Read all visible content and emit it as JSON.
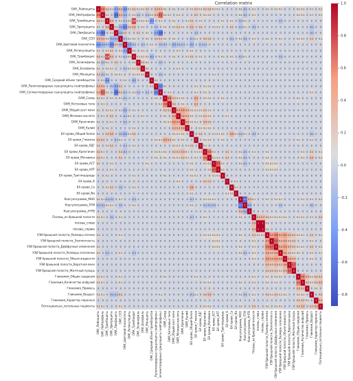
{
  "chart_data": {
    "type": "heatmap",
    "title": "Correlation matrix",
    "colormap": "coolwarm",
    "clim": [
      -0.87,
      1
    ],
    "cticks": [
      {
        "value": 1,
        "label": "1.0"
      },
      0.8,
      0.6,
      0.4,
      0.2,
      {
        "value": 0,
        "label": "0.0"
      },
      -0.2,
      -0.4,
      -0.6,
      -0.8
    ],
    "labels": [
      "ОАК_Лейкоциты",
      "ОАК_Нейтрофилы",
      "ОАК_Тромбоциты",
      "ОАК_Эритроциты",
      "ОАК_Лимфоциты",
      "ОАК_СОЭ",
      "ОАК_Цветовой показатель",
      "ОАК_Ретикулоциты",
      "ОАК_Тромбокрит",
      "ОАК_Эозинофилы",
      "ОАК_Базофилы",
      "ОАК_Моноциты",
      "ОАК_Средний объем тромбоцитов",
      "ОАК_Палочкоядерные гранулоциты (нейтрофилы)",
      "ОАК_Сегментоядерные гранулоциты (нейтрофилы)",
      "ОАМ_Сахар",
      "ОАМ_Кетоновые тела",
      "ОАМ_Общий азот мочи",
      "ОАМ_Мочевая кислота",
      "ОАМ_Креатинин",
      "ОАМ_Калий",
      "БХ крови_Общий белок",
      "БХ крови_Глюкоза",
      "БХ крови_ЛДГ",
      "БХ крови_Креатинин",
      "БХ крови_Мочевина",
      "БХ крови_АСТ",
      "БХ крови_АЛТ",
      "БХ крови_Триглицериды",
      "БХ крови_K",
      "БХ крови_Ca",
      "БХ крови_Na",
      "Коагулограмма_МНО",
      "Коагулограмма_ПТИ",
      "Коагулограмма_АЧТВ",
      "Посевы_из брюшной полости",
      "посевы_слева",
      "посевы_справа",
      "УЗИ брюшной полости_Размеры печени",
      "УЗИ брюшной полости_Эхоплотность",
      "УЗИ брюшной полости_Диффузные изменения",
      "УЗИ брюшной полости_Размеры селезенки",
      "УЗИ брюшной полости_Объем жидкости",
      "УЗИ брюшной полости_Воротная вена",
      "УЗИ брюшной полости_Желчный пузырь",
      "Гликемия_Общие сведения",
      "Гликемия_Количество инфузий",
      "Гликемия_Примесь",
      "Гликемия_Возраст",
      "Гликемия_Характер переноса",
      "Потенциально_летальные пациенты"
    ],
    "values": [
      [
        1
      ],
      [
        0.6,
        1
      ],
      [
        0.2,
        0.1,
        1
      ],
      [
        0.1,
        0,
        0.3,
        1
      ],
      [
        -0.3,
        -0.6,
        0,
        0.1,
        1
      ],
      [
        0.3,
        0.3,
        0.1,
        -0.2,
        -0.2,
        1
      ],
      [
        -0.4,
        -0.2,
        -0.1,
        -0.5,
        0.2,
        -0.1,
        1
      ],
      [
        0.1,
        0,
        0.1,
        0.2,
        0,
        0.1,
        -0.3,
        1
      ],
      [
        0.2,
        0.1,
        0.8,
        0.3,
        0,
        0.1,
        -0.1,
        0.1,
        1
      ],
      [
        0.1,
        -0.1,
        0.1,
        0,
        0.2,
        0,
        0,
        0,
        0.1,
        1
      ],
      [
        0.1,
        0,
        0.1,
        0.1,
        0,
        0,
        -0.1,
        0.1,
        0.1,
        0.2,
        1
      ],
      [
        0.2,
        -0.1,
        0.1,
        0,
        0.1,
        0.1,
        0,
        0,
        0.1,
        0.1,
        0.1,
        1
      ],
      [
        0,
        0.1,
        -0.4,
        0,
        0,
        0,
        0.1,
        0,
        -0.2,
        0,
        0,
        0,
        1
      ],
      [
        0.3,
        0.3,
        0,
        -0.1,
        -0.3,
        0.2,
        0,
        0,
        0,
        0,
        0,
        0,
        0.1,
        1
      ],
      [
        0.3,
        0.7,
        0.1,
        0,
        -0.6,
        0.2,
        -0.1,
        0,
        0.1,
        -0.1,
        0,
        -0.1,
        0,
        -0.5,
        1
      ],
      [
        0.1,
        0.1,
        0,
        0.1,
        0,
        0.1,
        -0.1,
        0,
        0,
        0,
        0,
        0,
        0,
        0.1,
        0,
        1
      ],
      [
        0,
        0.1,
        0,
        0,
        0,
        0,
        0,
        0,
        0,
        0,
        0,
        0,
        0,
        0,
        0.1,
        0.6,
        1
      ],
      [
        0.1,
        0,
        0.1,
        0.1,
        0,
        0.1,
        -0.2,
        0,
        0.1,
        0,
        0,
        0,
        0,
        0,
        0,
        0.2,
        0.2,
        1
      ],
      [
        0,
        0.1,
        0,
        0.2,
        0,
        0,
        -0.1,
        0.1,
        0,
        0,
        0.1,
        0,
        0,
        0,
        0,
        0.1,
        0,
        0.4,
        1
      ],
      [
        0.1,
        0,
        0,
        0.1,
        0,
        0,
        -0.1,
        0,
        0,
        0,
        0,
        0,
        0,
        0,
        0,
        0.1,
        0.1,
        0.5,
        0.4,
        1
      ],
      [
        0,
        0,
        0.1,
        0,
        0,
        0,
        0,
        0,
        0.1,
        0,
        0,
        0,
        0,
        0,
        0,
        0,
        0,
        0.3,
        0.3,
        0.4,
        1
      ],
      [
        0.1,
        0,
        0.2,
        0.3,
        0,
        -0.1,
        -0.2,
        0.1,
        0.2,
        0,
        0,
        0,
        0,
        0,
        0,
        0,
        0,
        0.1,
        0.1,
        0.1,
        0,
        1
      ],
      [
        0.2,
        0.2,
        0,
        0,
        -0.1,
        0.1,
        0,
        0,
        0,
        0,
        0,
        0,
        0,
        0.1,
        0.1,
        0.4,
        0.3,
        0.1,
        0,
        0.1,
        0,
        0,
        1
      ],
      [
        0.1,
        0,
        0.1,
        0.2,
        0,
        0,
        -0.1,
        0,
        0.1,
        0,
        0,
        0,
        0,
        0,
        0,
        0,
        0,
        0.1,
        0.1,
        0,
        0.1,
        0.2,
        0,
        1
      ],
      [
        0.2,
        0.1,
        0,
        0,
        0,
        0.2,
        -0.1,
        0,
        0,
        0,
        0,
        0,
        0,
        0.1,
        0.1,
        0.1,
        0,
        0.2,
        0.2,
        0.3,
        0.1,
        0,
        0.1,
        0.1,
        1
      ],
      [
        0.2,
        0.1,
        0,
        0,
        0,
        0.2,
        0,
        0,
        0,
        0,
        0,
        0,
        0,
        0.1,
        0,
        0.1,
        0,
        0.1,
        0.1,
        0.2,
        0.1,
        0,
        0.1,
        0,
        0.6,
        1
      ],
      [
        0.1,
        0,
        0,
        0.1,
        0,
        0,
        0,
        0,
        0,
        0,
        0,
        0.1,
        0,
        0,
        0,
        0,
        0,
        0,
        0,
        0,
        0,
        0.1,
        0,
        0,
        0.1,
        0.1,
        1
      ],
      [
        0.1,
        0,
        0,
        0.1,
        0,
        0,
        0,
        0,
        0,
        0,
        0,
        0,
        0,
        0,
        0,
        0,
        0,
        0,
        0,
        0,
        0,
        0.1,
        0,
        0,
        0,
        0.1,
        0.7,
        1
      ],
      [
        0,
        0,
        0.1,
        0,
        0,
        0,
        0,
        0,
        0.1,
        0,
        0,
        0,
        0,
        0,
        0,
        0.1,
        0,
        0,
        0,
        0,
        0,
        0.1,
        0.1,
        0,
        0,
        0,
        0.1,
        0.1,
        1
      ],
      [
        0,
        0,
        0,
        0,
        0,
        0,
        0,
        0,
        0,
        0,
        0,
        0,
        0,
        0,
        0,
        0,
        0,
        0,
        0.1,
        0,
        0,
        0,
        0,
        0,
        0.2,
        0.2,
        0,
        0,
        0,
        1
      ],
      [
        0,
        0,
        0.1,
        0.2,
        0,
        -0.1,
        0,
        0,
        0.1,
        0,
        0,
        0,
        0,
        0,
        0,
        0,
        0,
        0,
        0,
        0,
        0,
        0.4,
        0,
        0,
        0,
        0,
        0,
        0,
        0,
        0,
        1
      ],
      [
        0,
        0,
        0,
        0,
        0,
        0,
        0,
        0,
        0,
        0,
        0,
        0,
        0,
        0,
        0,
        0,
        0,
        0,
        0,
        0,
        0,
        0.1,
        0,
        0,
        0,
        0,
        0,
        0,
        0,
        0.1,
        0.1,
        1
      ],
      [
        0.1,
        0.1,
        -0.1,
        -0.1,
        0,
        0.1,
        0,
        0,
        -0.1,
        0,
        0,
        0,
        0,
        0,
        0,
        0,
        0,
        0,
        0,
        0,
        0,
        -0.1,
        0,
        0,
        0.1,
        0.1,
        0.1,
        0,
        0,
        0,
        0,
        0,
        1
      ],
      [
        -0.1,
        -0.1,
        0.1,
        0.1,
        0,
        -0.1,
        0,
        0,
        0.1,
        0,
        0,
        0,
        0,
        0,
        0,
        0,
        0,
        0,
        0,
        0,
        0,
        0.1,
        0,
        0,
        -0.1,
        -0.1,
        -0.1,
        0,
        0,
        0,
        0,
        0,
        -0.7,
        1
      ],
      [
        0,
        0,
        0,
        0,
        0,
        0,
        0,
        0,
        0,
        0,
        0,
        0,
        0,
        0,
        0,
        0,
        0,
        0,
        0,
        0,
        0,
        0,
        0,
        0,
        0,
        0,
        0,
        0,
        0,
        0,
        0,
        0,
        0.3,
        -0.2,
        1
      ],
      [
        0.1,
        0.1,
        0,
        -0.1,
        0,
        0.1,
        0,
        0,
        0,
        0,
        0,
        0,
        0,
        0,
        0,
        0,
        0,
        0,
        0,
        0,
        0,
        -0.1,
        0,
        0,
        0.1,
        0,
        0,
        0,
        0,
        0,
        0,
        0,
        0.1,
        0,
        0,
        1
      ],
      [
        0,
        0,
        0,
        0,
        0,
        0,
        0,
        0,
        0,
        0,
        0,
        0,
        0,
        0,
        0,
        0,
        0,
        0,
        0,
        0,
        0,
        0,
        0,
        0,
        0,
        0,
        0,
        0,
        0,
        0,
        0,
        0,
        0,
        0,
        0,
        0.3,
        1
      ],
      [
        0,
        0,
        0,
        0,
        0,
        0,
        0,
        0,
        0,
        0,
        0,
        0,
        0,
        0,
        0,
        0,
        0,
        0,
        0,
        0,
        0,
        0,
        0,
        0,
        0,
        0,
        0,
        0,
        0,
        0,
        0,
        0,
        0,
        0,
        0,
        0.3,
        1,
        1
      ],
      [
        0.1,
        0,
        0,
        0,
        0,
        0.1,
        0,
        0,
        0,
        0,
        0,
        0,
        0,
        0,
        0,
        0,
        0,
        0,
        0,
        0,
        0,
        0,
        0,
        0,
        0.1,
        0.1,
        0.1,
        0.1,
        0,
        0,
        0,
        0,
        0.1,
        0,
        0,
        0.2,
        0.1,
        0.1,
        1
      ],
      [
        0,
        0,
        0,
        0,
        0,
        0,
        0,
        0,
        0,
        0,
        0,
        0,
        0,
        0,
        0,
        0,
        0,
        0,
        0,
        0,
        0,
        0,
        0,
        0,
        0,
        0,
        0.1,
        0.1,
        0,
        0,
        0,
        0,
        0,
        0,
        0,
        0.1,
        0,
        0,
        0.5,
        1
      ],
      [
        0.1,
        0,
        0,
        0,
        0,
        0,
        0,
        0,
        0,
        0,
        0,
        0,
        0,
        0,
        0,
        0,
        0,
        0,
        0,
        0,
        0,
        0,
        0,
        0,
        0,
        0,
        0.1,
        0.1,
        0,
        0,
        0,
        0,
        0.1,
        0,
        0,
        0.1,
        0,
        0,
        0.6,
        0.7,
        1
      ],
      [
        0.1,
        0,
        -0.1,
        0,
        0,
        0.1,
        0,
        0,
        -0.1,
        0,
        0,
        0,
        0,
        0,
        0,
        0,
        0,
        0,
        0,
        0,
        0,
        0,
        0,
        0,
        0,
        0,
        0,
        0,
        0,
        0,
        0,
        0,
        0.1,
        -0.1,
        0,
        0.1,
        0,
        0,
        0.4,
        0.3,
        0.4,
        1
      ],
      [
        0,
        0,
        0,
        0,
        0,
        0,
        0,
        0,
        0,
        0,
        0,
        0,
        0,
        0,
        0,
        0,
        0,
        0,
        0,
        0,
        0,
        0,
        0,
        0,
        0,
        0,
        0,
        0,
        0,
        0,
        0,
        0,
        0,
        0,
        0,
        0.1,
        0,
        0,
        0.5,
        0.4,
        0.5,
        0.4,
        1
      ],
      [
        0,
        0,
        0,
        0,
        0,
        0,
        0,
        0,
        0,
        0,
        0,
        0,
        0,
        0,
        0,
        0,
        0,
        0,
        0,
        0,
        0,
        0,
        0,
        0,
        0,
        0,
        0,
        0,
        0,
        0,
        0,
        0,
        0,
        0,
        0,
        0,
        0,
        0,
        0.3,
        0.2,
        0.3,
        0.2,
        0.4,
        1
      ],
      [
        0,
        0,
        0,
        0,
        0,
        0,
        0,
        0,
        0,
        0,
        0,
        0,
        0,
        0,
        0,
        0,
        0,
        0,
        0,
        0,
        0,
        0,
        0,
        0,
        0,
        0,
        0,
        0,
        0,
        0,
        0,
        0,
        0,
        0,
        0,
        0,
        0,
        0,
        0.2,
        0.2,
        0.2,
        0.1,
        0.3,
        0.7,
        1
      ],
      [
        0.1,
        0.1,
        0,
        0,
        0,
        0.1,
        0,
        0,
        0,
        0,
        0,
        0,
        0,
        0,
        0,
        0.1,
        0,
        0,
        0,
        0,
        0,
        0,
        0.1,
        0,
        0,
        0,
        0,
        0,
        0,
        0,
        0,
        0,
        0,
        0,
        0,
        0.1,
        0,
        0,
        0.1,
        0,
        0.1,
        0.1,
        0,
        0,
        0,
        1
      ],
      [
        0.1,
        0.1,
        0,
        0,
        0,
        0.1,
        0,
        0,
        0,
        0,
        0,
        0,
        0,
        0,
        0,
        0,
        0,
        0,
        0,
        0,
        0,
        0,
        0,
        0,
        0.1,
        0.1,
        0,
        0,
        0,
        0,
        0,
        0,
        0.1,
        0,
        0,
        0.1,
        0,
        0,
        0.1,
        0,
        0.1,
        0,
        0,
        0,
        0,
        0.6,
        1
      ],
      [
        0,
        0,
        0,
        0,
        0,
        0,
        0,
        0,
        0,
        0,
        0,
        0,
        0,
        0,
        0,
        0,
        0,
        0,
        0,
        0,
        0,
        0,
        0,
        0,
        0,
        0,
        0,
        0,
        0,
        0,
        0,
        0,
        0,
        0,
        0,
        0,
        0,
        0,
        0,
        0,
        0,
        0,
        0,
        0,
        0,
        0.3,
        0.2,
        1
      ],
      [
        0.1,
        0.1,
        0,
        -0.1,
        -0.1,
        0.2,
        0,
        0,
        0,
        0,
        0,
        0,
        0,
        0,
        0.1,
        0,
        0,
        0,
        0,
        0,
        0,
        -0.1,
        0.1,
        0,
        0.2,
        0.3,
        0,
        0,
        0,
        0,
        0,
        0,
        0.1,
        -0.1,
        0,
        0.1,
        0,
        0,
        0.2,
        0.1,
        0.2,
        0.1,
        0.1,
        0,
        0,
        0.1,
        0.1,
        0,
        1
      ],
      [
        0,
        0,
        0,
        0,
        0,
        0,
        0,
        0,
        0,
        0,
        0,
        0,
        0,
        0,
        0,
        0,
        0,
        0,
        0,
        0,
        0,
        0,
        0,
        0,
        0,
        0,
        0,
        0,
        0,
        0,
        0,
        0,
        0,
        0,
        0,
        0,
        0,
        0,
        0,
        0,
        0,
        0,
        0,
        0,
        0,
        0.2,
        0.2,
        0.1,
        0,
        1
      ],
      [
        0.1,
        0.1,
        0,
        0,
        0,
        0.1,
        0,
        0,
        0,
        0,
        0,
        0,
        0,
        0,
        0,
        0,
        0,
        0,
        0,
        0,
        0,
        0,
        0,
        0,
        0.1,
        0.1,
        0,
        0,
        0,
        0,
        0,
        0,
        0.1,
        0,
        0,
        0.2,
        0,
        0,
        0.1,
        0,
        0.1,
        0.1,
        0,
        0,
        0,
        0.2,
        0.3,
        0,
        0.2,
        0.3,
        1
      ]
    ]
  }
}
